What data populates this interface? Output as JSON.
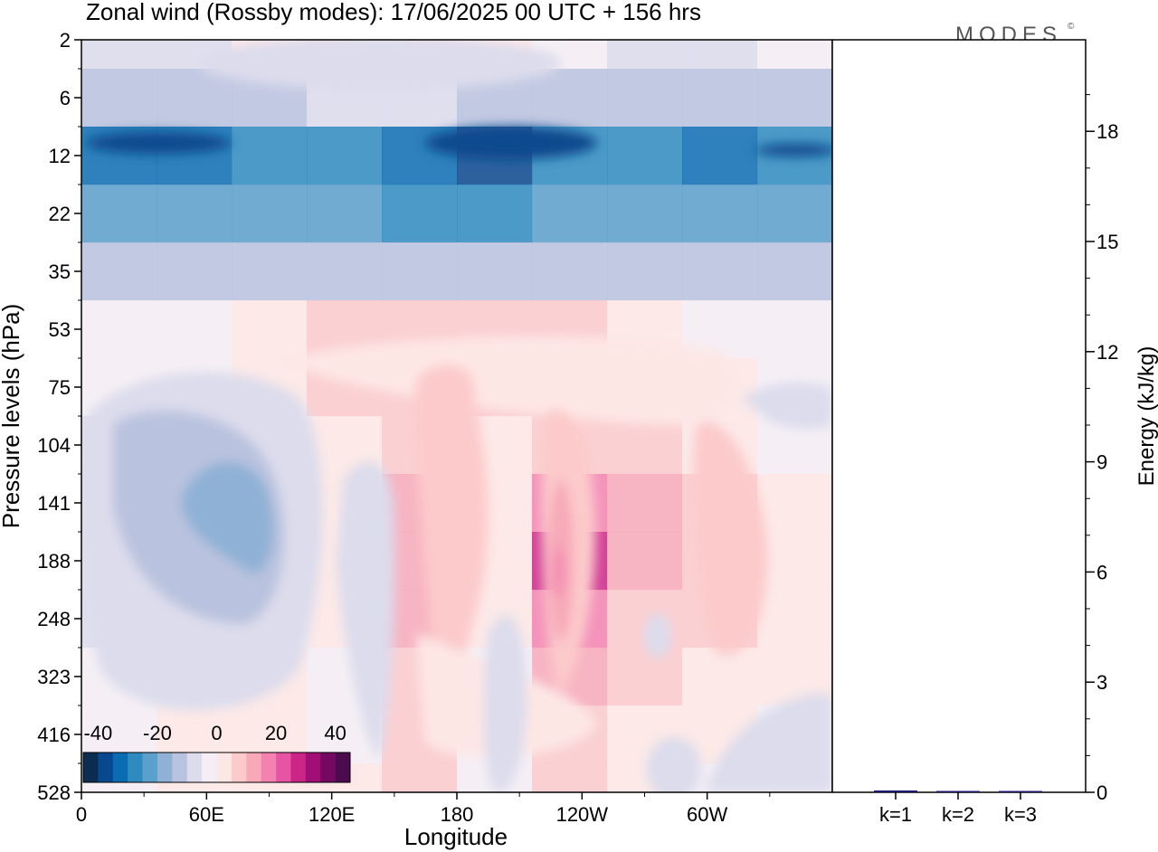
{
  "title": "Zonal wind (Rossby modes):  17/06/2025  00 UTC  + 156 hrs",
  "logo": "MODES",
  "logo_mark": "©",
  "chart_data": [
    {
      "type": "heatmap",
      "name": "zonal-wind-section",
      "xlabel": "Longitude",
      "ylabel": "Pressure levels (hPa)",
      "x_ticks": [
        "0",
        "60E",
        "120E",
        "180",
        "120W",
        "60W"
      ],
      "y_ticks": [
        "2",
        "6",
        "12",
        "22",
        "35",
        "53",
        "75",
        "104",
        "141",
        "188",
        "248",
        "323",
        "416",
        "528"
      ],
      "colorbar": {
        "labels": [
          "-40",
          "-20",
          "0",
          "20",
          "40"
        ],
        "colors": [
          "#0b2d4f",
          "#08488e",
          "#0a6db1",
          "#2e8bc0",
          "#5b9fcb",
          "#8fb1d6",
          "#b9c2de",
          "#dcdcec",
          "#f5eef5",
          "#fde7e5",
          "#fccacb",
          "#f7a9b8",
          "#f382b0",
          "#e754a1",
          "#cc2588",
          "#a10e76",
          "#750861",
          "#4d0b4f"
        ]
      },
      "bands": [
        {
          "level": "2",
          "values": [
            -10,
            -10,
            0,
            5,
            5,
            0,
            -5,
            -10,
            -10,
            -5
          ]
        },
        {
          "level": "6",
          "values": [
            -15,
            -15,
            -12,
            -10,
            -10,
            -12,
            -15,
            -15,
            -12,
            -12
          ]
        },
        {
          "level": "12",
          "values": [
            -35,
            -35,
            -30,
            -30,
            -35,
            -40,
            -30,
            -30,
            -35,
            -30
          ]
        },
        {
          "level": "22",
          "values": [
            -25,
            -25,
            -25,
            -25,
            -30,
            -30,
            -25,
            -25,
            -25,
            -25
          ]
        },
        {
          "level": "35",
          "values": [
            -15,
            -15,
            -15,
            -15,
            -15,
            -15,
            -15,
            -15,
            -15,
            -15
          ]
        },
        {
          "level": "53",
          "values": [
            -5,
            -5,
            0,
            5,
            5,
            5,
            5,
            0,
            -5,
            -5
          ]
        },
        {
          "level": "75",
          "values": [
            -5,
            -5,
            0,
            5,
            5,
            5,
            5,
            5,
            0,
            -5
          ]
        },
        {
          "level": "104",
          "values": [
            -10,
            -15,
            -5,
            0,
            5,
            0,
            5,
            5,
            0,
            -5
          ]
        },
        {
          "level": "141",
          "values": [
            -10,
            -20,
            -10,
            0,
            10,
            0,
            15,
            10,
            5,
            0
          ]
        },
        {
          "level": "188",
          "values": [
            -10,
            -20,
            -10,
            0,
            10,
            0,
            25,
            10,
            5,
            0
          ]
        },
        {
          "level": "248",
          "values": [
            -10,
            -10,
            -5,
            0,
            10,
            0,
            15,
            5,
            5,
            0
          ]
        },
        {
          "level": "323",
          "values": [
            -5,
            -5,
            0,
            -5,
            5,
            -5,
            10,
            5,
            0,
            0
          ]
        },
        {
          "level": "416",
          "values": [
            -5,
            0,
            0,
            -5,
            5,
            -5,
            5,
            0,
            0,
            -5
          ]
        },
        {
          "level": "528",
          "values": [
            -5,
            0,
            0,
            0,
            5,
            -5,
            5,
            0,
            -5,
            -5
          ]
        }
      ]
    },
    {
      "type": "bar",
      "name": "energy-spectrum",
      "categories": [
        "k=1",
        "k=2",
        "k=3"
      ],
      "values": [
        0.05,
        0.02,
        0.02
      ],
      "ylabel": "Energy (kJ/kg)",
      "ylim": [
        0,
        20
      ],
      "y_ticks": [
        0,
        3,
        6,
        9,
        12,
        15,
        18
      ],
      "bar_color": "#1c1a6e"
    }
  ]
}
